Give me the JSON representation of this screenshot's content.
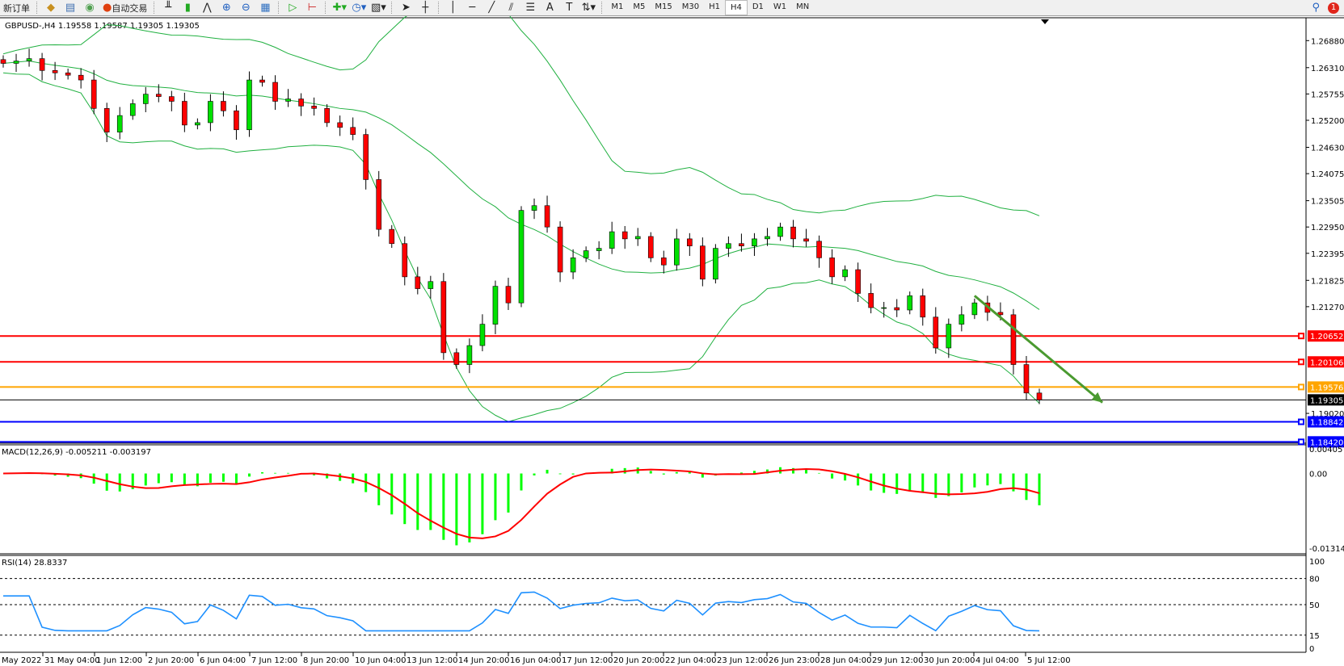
{
  "toolbar": {
    "new_order": "新订单",
    "auto_trading": "自动交易",
    "timeframes": [
      "M1",
      "M5",
      "M15",
      "M30",
      "H1",
      "H4",
      "D1",
      "W1",
      "MN"
    ],
    "active_timeframe": "H4",
    "notification_count": "1",
    "icons": [
      "chart-bar-icon",
      "candle-icon",
      "line-chart-icon",
      "zoom-in-icon",
      "zoom-out-icon",
      "tile-windows-icon",
      "autoscroll-icon",
      "chart-shift-icon",
      "indicators-icon",
      "periods-icon",
      "templates-icon",
      "cursor-icon",
      "crosshair-icon",
      "vertical-line-icon",
      "horizontal-line-icon",
      "trendline-icon",
      "equidistant-channel-icon",
      "fibonacci-icon",
      "text-icon",
      "text-label-icon",
      "arrows-icon"
    ]
  },
  "chart_data": {
    "type": "candlestick",
    "symbol_info": "GBPUSD-,H4  1.19558 1.19587 1.19305 1.19305",
    "close": [
      1.264,
      1.2645,
      1.265,
      1.2625,
      1.262,
      1.2615,
      1.2605,
      1.2545,
      1.2495,
      1.253,
      1.2555,
      1.2575,
      1.257,
      1.256,
      1.251,
      1.2515,
      1.256,
      1.254,
      1.25,
      1.2605,
      1.26,
      1.256,
      1.2565,
      1.255,
      1.2545,
      1.2515,
      1.2505,
      1.249,
      1.2395,
      1.229,
      1.226,
      1.219,
      1.2165,
      1.218,
      1.203,
      1.2005,
      1.2045,
      1.209,
      1.217,
      1.2135,
      1.233,
      1.234,
      1.2295,
      1.22,
      1.223,
      1.2245,
      1.225,
      1.2285,
      1.227,
      1.2275,
      1.223,
      1.2215,
      1.227,
      1.2255,
      1.2185,
      1.225,
      1.226,
      1.2255,
      1.227,
      1.2275,
      1.2295,
      1.227,
      1.2265,
      1.223,
      1.219,
      1.2205,
      1.2155,
      1.2125,
      1.2125,
      1.212,
      1.215,
      1.2105,
      1.204,
      1.209,
      1.211,
      1.2135,
      1.2115,
      1.211,
      1.2005,
      1.1945,
      1.19305
    ],
    "bull_color": "#00e000",
    "bear_color": "#ff0000",
    "band_color": "#20b040",
    "price_ticks": [
      "1.26880",
      "1.26310",
      "1.25755",
      "1.25200",
      "1.24630",
      "1.24075",
      "1.23505",
      "1.22950",
      "1.22395",
      "1.21825",
      "1.21270",
      "1.19020"
    ],
    "price_range": [
      1.1842,
      1.272
    ],
    "levels": [
      {
        "price": 1.20652,
        "label": "1.20652",
        "color": "#ff0000"
      },
      {
        "price": 1.20106,
        "label": "1.20106",
        "color": "#ff0000"
      },
      {
        "price": 1.19576,
        "label": "1.19576",
        "color": "#ffa500"
      },
      {
        "price": 1.18842,
        "label": "1.18842",
        "color": "#0000ff"
      },
      {
        "price": 1.1842,
        "label": "1.18420",
        "color": "#0000ff"
      }
    ],
    "bid": {
      "price": 1.19305,
      "label": "1.19305",
      "color": "#000000"
    },
    "arrow": {
      "from": {
        "date": "4 Jul 04:00",
        "price": 1.215
      },
      "to": {
        "date": "5 Jul 20:00",
        "price": 1.193
      },
      "color": "#4a9a30"
    },
    "x_ticks": [
      "May 2022",
      "31 May 04:00",
      "1 Jun 12:00",
      "2 Jun 20:00",
      "6 Jun 04:00",
      "7 Jun 12:00",
      "8 Jun 20:00",
      "10 Jun 04:00",
      "13 Jun 12:00",
      "14 Jun 20:00",
      "16 Jun 04:00",
      "17 Jun 12:00",
      "20 Jun 20:00",
      "22 Jun 04:00",
      "23 Jun 12:00",
      "26 Jun 23:00",
      "28 Jun 04:00",
      "29 Jun 12:00",
      "30 Jun 20:00",
      "4 Jul 04:00",
      "5 Jul 12:00"
    ],
    "macd": {
      "label": "MACD(12,26,9) -0.005211 -0.003197",
      "ticks": [
        "0.004057",
        "0.00",
        "-0.013143"
      ],
      "range": [
        -0.013143,
        0.004057
      ],
      "hist_color": "#00ff00",
      "signal_color": "#ff0000"
    },
    "rsi": {
      "label": "RSI(14) 28.8337",
      "ticks": [
        "100",
        "80",
        "50",
        "15",
        "0"
      ],
      "levels": [
        80,
        50,
        15
      ],
      "color": "#1e90ff"
    }
  }
}
